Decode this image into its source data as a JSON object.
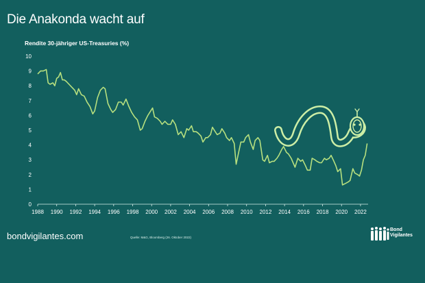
{
  "page": {
    "title": "Die Anakonda wacht auf",
    "subtitle": "Rendite 30-jähriger US-Treasuries (%)",
    "footer_site": "bondvigilantes.com",
    "source": "Quelle: M&G, Bloomberg (26. Oktober 2022)",
    "logo_line1": "Bond",
    "logo_line2": "Vigilantes"
  },
  "colors": {
    "background": "#125f5e",
    "line": "#b7e07f",
    "snake": "#cdeea6",
    "text": "#ffffff"
  },
  "chart_data": {
    "type": "line",
    "title": "",
    "xlabel": "",
    "ylabel": "Rendite 30-jähriger US-Treasuries (%)",
    "xlim": [
      1988,
      2022.8
    ],
    "ylim": [
      0,
      10
    ],
    "grid": false,
    "xticks": [
      1988,
      1990,
      1992,
      1994,
      1996,
      1998,
      2000,
      2002,
      2004,
      2006,
      2008,
      2010,
      2012,
      2014,
      2016,
      2018,
      2020,
      2022
    ],
    "yticks": [
      0,
      1,
      2,
      3,
      4,
      5,
      6,
      7,
      8,
      9,
      10
    ],
    "series": [
      {
        "name": "",
        "points": [
          [
            1988.0,
            8.8
          ],
          [
            1988.3,
            9.0
          ],
          [
            1988.6,
            9.0
          ],
          [
            1988.9,
            9.1
          ],
          [
            1989.1,
            8.2
          ],
          [
            1989.3,
            8.1
          ],
          [
            1989.6,
            8.2
          ],
          [
            1989.8,
            8.0
          ],
          [
            1990.0,
            8.5
          ],
          [
            1990.2,
            8.6
          ],
          [
            1990.4,
            8.9
          ],
          [
            1990.6,
            8.4
          ],
          [
            1990.8,
            8.4
          ],
          [
            1991.0,
            8.3
          ],
          [
            1991.3,
            8.1
          ],
          [
            1991.6,
            7.9
          ],
          [
            1991.9,
            7.7
          ],
          [
            1992.1,
            7.4
          ],
          [
            1992.3,
            7.8
          ],
          [
            1992.6,
            7.4
          ],
          [
            1992.9,
            7.3
          ],
          [
            1993.2,
            6.9
          ],
          [
            1993.5,
            6.6
          ],
          [
            1993.8,
            6.1
          ],
          [
            1994.0,
            6.3
          ],
          [
            1994.3,
            7.2
          ],
          [
            1994.6,
            7.7
          ],
          [
            1994.9,
            7.9
          ],
          [
            1995.1,
            7.8
          ],
          [
            1995.4,
            6.8
          ],
          [
            1995.7,
            6.4
          ],
          [
            1995.9,
            6.2
          ],
          [
            1996.2,
            6.4
          ],
          [
            1996.5,
            6.9
          ],
          [
            1996.8,
            6.9
          ],
          [
            1997.0,
            6.7
          ],
          [
            1997.3,
            7.1
          ],
          [
            1997.6,
            6.6
          ],
          [
            1997.9,
            6.2
          ],
          [
            1998.2,
            5.9
          ],
          [
            1998.5,
            5.7
          ],
          [
            1998.8,
            5.0
          ],
          [
            1999.0,
            5.1
          ],
          [
            1999.3,
            5.6
          ],
          [
            1999.6,
            6.0
          ],
          [
            1999.9,
            6.3
          ],
          [
            2000.1,
            6.5
          ],
          [
            2000.3,
            5.9
          ],
          [
            2000.6,
            5.8
          ],
          [
            2000.9,
            5.6
          ],
          [
            2001.1,
            5.4
          ],
          [
            2001.4,
            5.6
          ],
          [
            2001.7,
            5.4
          ],
          [
            2002.0,
            5.4
          ],
          [
            2002.2,
            5.7
          ],
          [
            2002.5,
            5.4
          ],
          [
            2002.8,
            4.7
          ],
          [
            2003.1,
            4.9
          ],
          [
            2003.4,
            4.5
          ],
          [
            2003.7,
            5.1
          ],
          [
            2003.9,
            5.0
          ],
          [
            2004.2,
            5.3
          ],
          [
            2004.4,
            4.9
          ],
          [
            2004.7,
            4.9
          ],
          [
            2004.9,
            4.8
          ],
          [
            2005.2,
            4.6
          ],
          [
            2005.4,
            4.2
          ],
          [
            2005.7,
            4.5
          ],
          [
            2005.9,
            4.5
          ],
          [
            2006.2,
            4.7
          ],
          [
            2006.4,
            5.2
          ],
          [
            2006.7,
            4.9
          ],
          [
            2006.9,
            4.7
          ],
          [
            2007.2,
            4.8
          ],
          [
            2007.4,
            5.1
          ],
          [
            2007.7,
            4.8
          ],
          [
            2007.9,
            4.5
          ],
          [
            2008.2,
            4.3
          ],
          [
            2008.4,
            4.5
          ],
          [
            2008.7,
            4.1
          ],
          [
            2008.9,
            2.7
          ],
          [
            2009.2,
            3.6
          ],
          [
            2009.4,
            4.2
          ],
          [
            2009.7,
            4.2
          ],
          [
            2009.9,
            4.5
          ],
          [
            2010.2,
            4.7
          ],
          [
            2010.4,
            4.2
          ],
          [
            2010.7,
            3.7
          ],
          [
            2010.9,
            4.3
          ],
          [
            2011.2,
            4.5
          ],
          [
            2011.4,
            4.3
          ],
          [
            2011.7,
            3.0
          ],
          [
            2011.9,
            2.9
          ],
          [
            2012.2,
            3.3
          ],
          [
            2012.4,
            2.8
          ],
          [
            2012.7,
            2.9
          ],
          [
            2012.9,
            2.9
          ],
          [
            2013.2,
            3.1
          ],
          [
            2013.4,
            3.3
          ],
          [
            2013.7,
            3.7
          ],
          [
            2013.9,
            3.9
          ],
          [
            2014.2,
            3.5
          ],
          [
            2014.4,
            3.4
          ],
          [
            2014.7,
            3.1
          ],
          [
            2014.9,
            2.8
          ],
          [
            2015.1,
            2.5
          ],
          [
            2015.4,
            3.1
          ],
          [
            2015.7,
            2.9
          ],
          [
            2015.9,
            3.0
          ],
          [
            2016.2,
            2.6
          ],
          [
            2016.4,
            2.3
          ],
          [
            2016.7,
            2.3
          ],
          [
            2016.9,
            3.1
          ],
          [
            2017.2,
            3.0
          ],
          [
            2017.4,
            2.9
          ],
          [
            2017.7,
            2.8
          ],
          [
            2017.9,
            2.8
          ],
          [
            2018.2,
            3.1
          ],
          [
            2018.4,
            3.0
          ],
          [
            2018.7,
            3.1
          ],
          [
            2018.9,
            3.3
          ],
          [
            2019.2,
            2.9
          ],
          [
            2019.4,
            2.6
          ],
          [
            2019.6,
            2.2
          ],
          [
            2019.9,
            2.4
          ],
          [
            2020.1,
            1.3
          ],
          [
            2020.4,
            1.4
          ],
          [
            2020.7,
            1.5
          ],
          [
            2020.9,
            1.6
          ],
          [
            2021.2,
            2.4
          ],
          [
            2021.4,
            2.1
          ],
          [
            2021.7,
            2.0
          ],
          [
            2021.9,
            1.9
          ],
          [
            2022.1,
            2.3
          ],
          [
            2022.3,
            3.0
          ],
          [
            2022.5,
            3.3
          ],
          [
            2022.7,
            4.1
          ]
        ]
      }
    ]
  }
}
